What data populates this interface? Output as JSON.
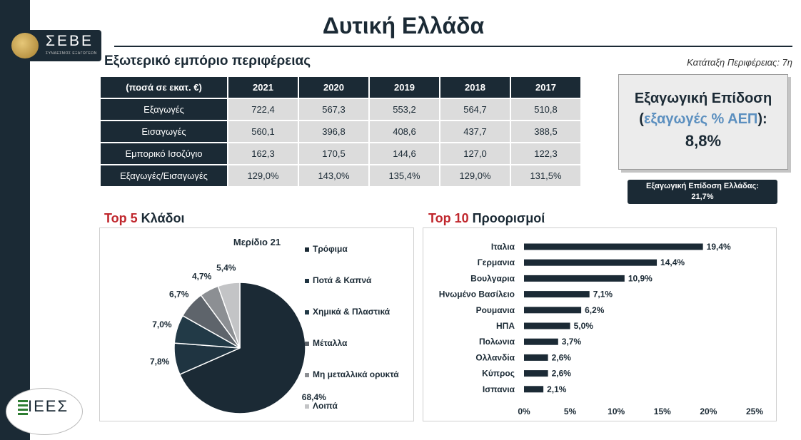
{
  "logo": {
    "text": "ΣΕΒΕ",
    "subtitle": "ΣΥΝΔΕΣΜΟΣ ΕΞΑΓΩΓΕΩΝ"
  },
  "page": {
    "title": "Δυτική Ελλάδα",
    "subtitle": "Εξωτερικό εμπόριο περιφέρειας",
    "ranking": "Κατάταξη Περιφέρειας: 7η"
  },
  "trade_table": {
    "header": [
      "(ποσά σε εκατ. €)",
      "2021",
      "2020",
      "2019",
      "2018",
      "2017"
    ],
    "rows": [
      {
        "label": "Εξαγωγές",
        "values": [
          "722,4",
          "567,3",
          "553,2",
          "564,7",
          "510,8"
        ]
      },
      {
        "label": "Εισαγωγές",
        "values": [
          "560,1",
          "396,8",
          "408,6",
          "437,7",
          "388,5"
        ]
      },
      {
        "label": "Εμπορικό Ισοζύγιο",
        "values": [
          "162,3",
          "170,5",
          "144,6",
          "127,0",
          "122,3"
        ]
      },
      {
        "label": "Εξαγωγές/Εισαγωγές",
        "values": [
          "129,0%",
          "143,0%",
          "135,4%",
          "129,0%",
          "131,5%"
        ]
      }
    ]
  },
  "kpi": {
    "title": "Εξαγωγική Επίδοση",
    "open": "(",
    "sub": "εξαγωγές % ΑΕΠ",
    "close": "):",
    "value": "8,8%",
    "greece_label": "Εξαγωγική Επίδοση Ελλάδας:",
    "greece_value": "21,7%"
  },
  "sectors_heading": {
    "top": "Top 5",
    "rest": " Κλάδοι"
  },
  "destinations_heading": {
    "top": "Top 10",
    "rest": " Προορισμοί"
  },
  "colors": {
    "navy": "#1b2a35",
    "red": "#c0272d",
    "blue": "#5b8fbf"
  },
  "icons": {
    "logo": "seve-emblem-icon",
    "iees": "iees-logo-icon"
  },
  "iees_text": "ΙΕΕΣ",
  "chart_data": [
    {
      "type": "pie",
      "title": "Μερίδιο 21",
      "categories": [
        "Τρόφιμα",
        "Ποτά & Καπνά",
        "Χημικά & Πλαστικά",
        "Μέταλλα",
        "Μη μεταλλικά ορυκτά",
        "Λοιπά"
      ],
      "values": [
        68.4,
        7.8,
        7.0,
        6.7,
        4.7,
        5.4
      ],
      "labels": [
        "68,4%",
        "7,8%",
        "7,0%",
        "6,7%",
        "4,7%",
        "5,4%"
      ],
      "colors": [
        "#1b2a35",
        "#1f3441",
        "#223a47",
        "#5e646b",
        "#8c8f93",
        "#c3c4c6"
      ],
      "legend": "right"
    },
    {
      "type": "bar",
      "orientation": "horizontal",
      "categories": [
        "Ιταλια",
        "Γερμανια",
        "Βουλγαρια",
        "Ηνωμένο Βασίλειο",
        "Ρουμανια",
        "ΗΠΑ",
        "Πολωνια",
        "Ολλανδία",
        "Κύπρος",
        "Ισπανια"
      ],
      "values": [
        19.4,
        14.4,
        10.9,
        7.1,
        6.2,
        5.0,
        3.7,
        2.6,
        2.6,
        2.1
      ],
      "labels": [
        "19,4%",
        "14,4%",
        "10,9%",
        "7,1%",
        "6,2%",
        "5,0%",
        "3,7%",
        "2,6%",
        "2,6%",
        "2,1%"
      ],
      "xlim": [
        0,
        25
      ],
      "xticks": [
        "0%",
        "5%",
        "10%",
        "15%",
        "20%",
        "25%"
      ],
      "color": "#1b2a35"
    }
  ]
}
